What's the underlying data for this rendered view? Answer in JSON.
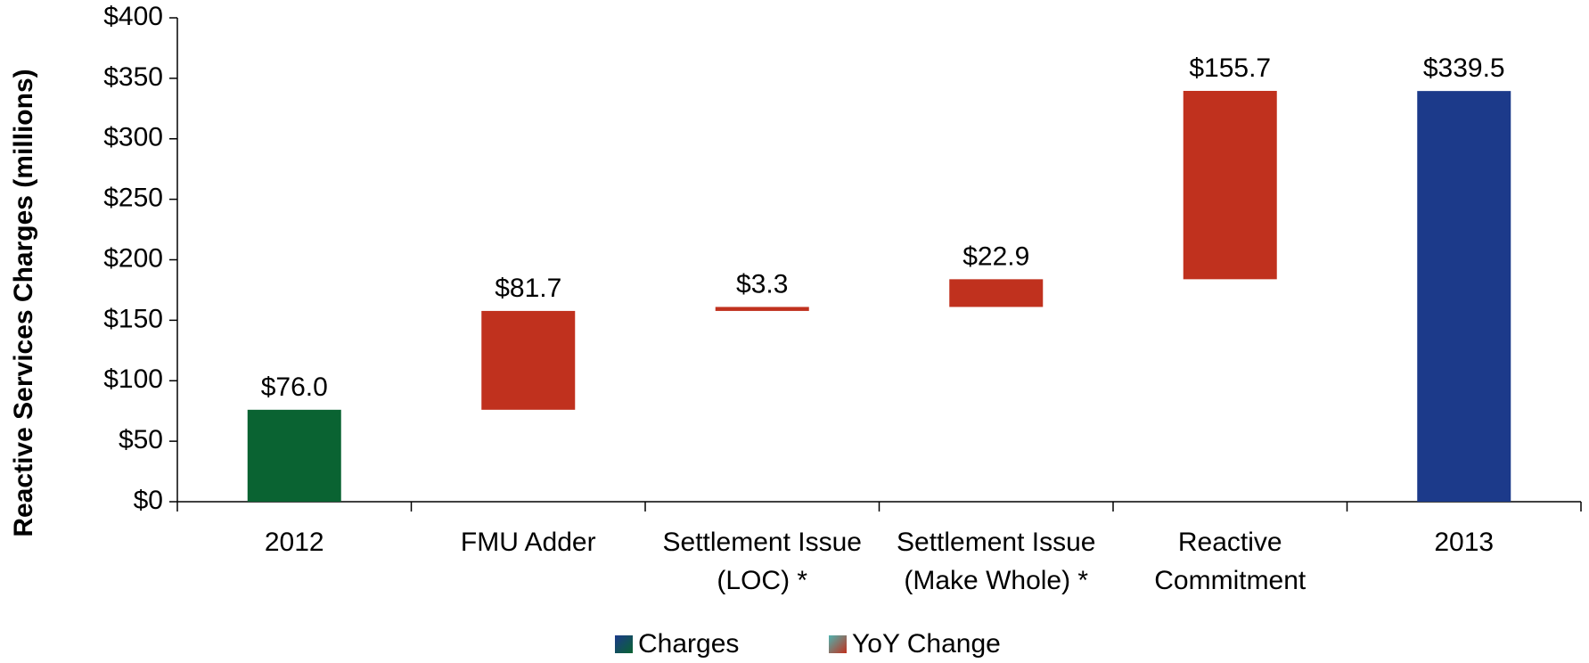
{
  "chart_data": {
    "type": "waterfall",
    "y_label": "Reactive Services Charges (millions)",
    "categories": [
      "2012",
      "FMU Adder",
      "Settlement Issue (LOC) *",
      "Settlement Issue (Make Whole) *",
      "Reactive Commitment",
      "2013"
    ],
    "values": [
      76.0,
      81.7,
      3.3,
      22.9,
      155.7,
      339.5
    ],
    "value_labels": [
      "$76.0",
      "$81.7",
      "$3.3",
      "$22.9",
      "$155.7",
      "$339.5"
    ],
    "measure": [
      "absolute",
      "relative",
      "relative",
      "relative",
      "relative",
      "total"
    ],
    "colors": [
      "#0a6332",
      "#c0311e",
      "#c0311e",
      "#c0311e",
      "#c0311e",
      "#1c3a8a"
    ],
    "legend": [
      {
        "name": "Charges",
        "color": "#1c3a8a"
      },
      {
        "name": "YoY Change",
        "color": "#c0311e"
      }
    ],
    "ylim": [
      0,
      400
    ],
    "yticks": [
      {
        "value": 0,
        "label": "$0"
      },
      {
        "value": 50,
        "label": "$50"
      },
      {
        "value": 100,
        "label": "$100"
      },
      {
        "value": 150,
        "label": "$150"
      },
      {
        "value": 200,
        "label": "$200"
      },
      {
        "value": 250,
        "label": "$250"
      },
      {
        "value": 300,
        "label": "$300"
      },
      {
        "value": 350,
        "label": "$350"
      },
      {
        "value": 400,
        "label": "$400"
      }
    ]
  }
}
